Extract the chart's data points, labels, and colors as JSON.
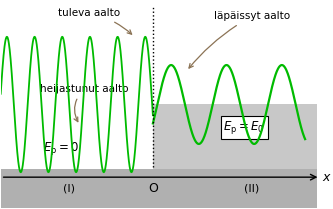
{
  "wave_color": "#00bb00",
  "annotation_color": "#8B7355",
  "text_color": "#000000",
  "bg_color": "#ffffff",
  "barrier_color": "#c8c8c8",
  "axis_bar_color": "#b0b0b0",
  "xmin": -1.0,
  "xmax": 1.08,
  "ymin": -1.0,
  "ymax": 1.0,
  "label_tuleva": "tuleva aalto",
  "label_heijastunut": "heijastunut aalto",
  "label_lapäissyt": "läpäissyt aalto",
  "label_Ep0": "$E_{\\mathrm{p}} = 0$",
  "label_EpE0": "$E_{\\mathrm{p}} = E_0$",
  "label_I": "(I)",
  "label_II": "(II)",
  "label_O": "O",
  "label_x": "$x$"
}
